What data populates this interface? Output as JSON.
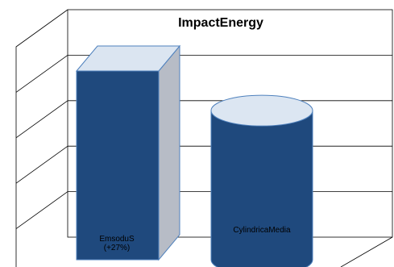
{
  "chart_data": {
    "type": "bar",
    "title": "ImpactEnergy",
    "categories": [
      "EmsoduS",
      "CylindricaMedia"
    ],
    "series": [
      {
        "values": [
          100,
          79
        ],
        "shapes": [
          "box",
          "cylinder"
        ],
        "data_labels": [
          [
            "EmsoduS",
            "(+27%)"
          ],
          [
            "CylindricaMedia"
          ]
        ]
      }
    ],
    "ylim": [
      0,
      125
    ],
    "grid": true,
    "legend": "none",
    "colors": {
      "bar_front": "#1f497d",
      "bar_side": "#b7bcc6",
      "bar_top": "#dbe5f1",
      "cylinder_top": "#dce6f2",
      "outline": "#4f81bd",
      "frame": "#000000"
    }
  }
}
